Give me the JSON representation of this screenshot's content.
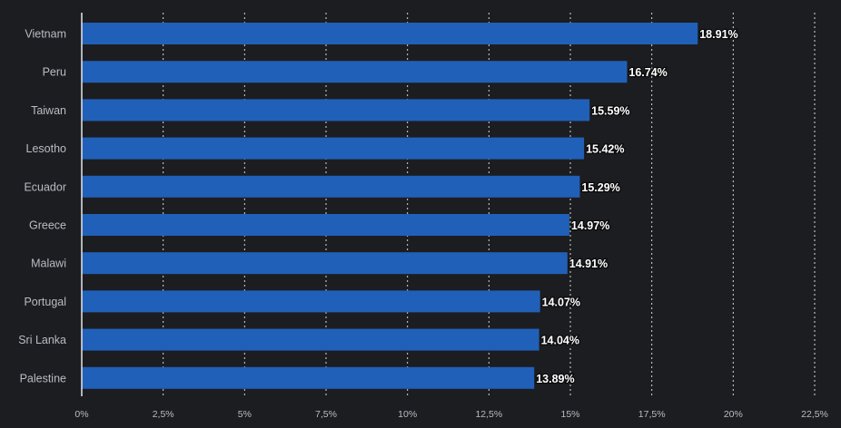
{
  "chart_data": {
    "type": "bar",
    "orientation": "horizontal",
    "categories": [
      "Vietnam",
      "Peru",
      "Taiwan",
      "Lesotho",
      "Ecuador",
      "Greece",
      "Malawi",
      "Portugal",
      "Sri Lanka",
      "Palestine"
    ],
    "values": [
      18.91,
      16.74,
      15.59,
      15.42,
      15.29,
      14.97,
      14.91,
      14.07,
      14.04,
      13.89
    ],
    "value_labels": [
      "18.91%",
      "16.74%",
      "15.59%",
      "15.42%",
      "15.29%",
      "14.97%",
      "14.91%",
      "14.07%",
      "14.04%",
      "13.89%"
    ],
    "x_ticks": [
      0,
      2.5,
      5,
      7.5,
      10,
      12.5,
      15,
      17.5,
      20,
      22.5
    ],
    "x_tick_labels": [
      "0%",
      "2,5%",
      "5%",
      "7,5%",
      "10%",
      "12,5%",
      "15%",
      "17,5%",
      "20%",
      "22,5%"
    ],
    "xlim": [
      0,
      22.5
    ],
    "title": "",
    "xlabel": "",
    "ylabel": "",
    "grid": true,
    "legend": "none",
    "colors": {
      "bar": "#2160b8",
      "background": "#1c1d21"
    }
  }
}
